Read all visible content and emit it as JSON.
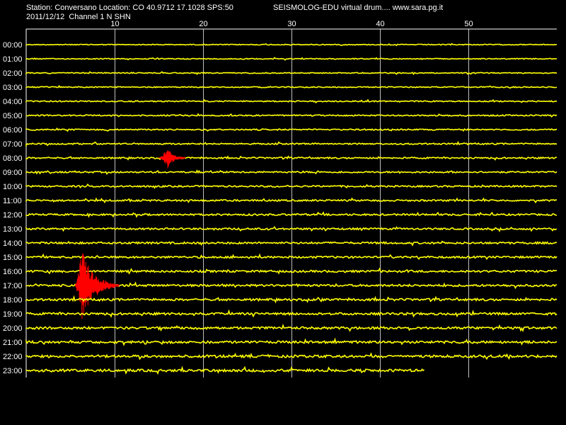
{
  "header": {
    "station_line": "Station: Conversano Location: CO 40.9712 17.1028 SPS:50",
    "date_line": "2011/12/12  Channel 1 N SHN",
    "app_line": "SEISMOLOG-EDU virtual drum.... www.sara.pg.it"
  },
  "colors": {
    "background": "#000000",
    "trace": "#ffff00",
    "event": "#ff0000",
    "grid": "#ffffff",
    "text": "#ffffff"
  },
  "chart_data": {
    "type": "line",
    "title": "",
    "xlabel": "",
    "ylabel": "",
    "x_ticks": [
      "10",
      "20",
      "30",
      "40",
      "50"
    ],
    "x_tick_values": [
      10,
      20,
      30,
      40,
      50
    ],
    "xlim": [
      0,
      60
    ],
    "grid": true,
    "rows": [
      "00:00",
      "01:00",
      "02:00",
      "03:00",
      "04:00",
      "05:00",
      "06:00",
      "07:00",
      "08:00",
      "09:00",
      "10:00",
      "11:00",
      "12:00",
      "13:00",
      "14:00",
      "15:00",
      "16:00",
      "17:00",
      "18:00",
      "19:00",
      "20:00",
      "21:00",
      "22:00",
      "23:00"
    ],
    "record_end_minute_last_row": 45,
    "events": [
      {
        "row": "08:00",
        "start_minute": 15.0,
        "peak_minute": 16.0,
        "end_minute": 18.0,
        "relative_amplitude": 0.3
      },
      {
        "row": "17:00",
        "start_minute": 5.5,
        "peak_minute": 6.3,
        "end_minute": 10.5,
        "relative_amplitude": 1.0
      }
    ]
  }
}
